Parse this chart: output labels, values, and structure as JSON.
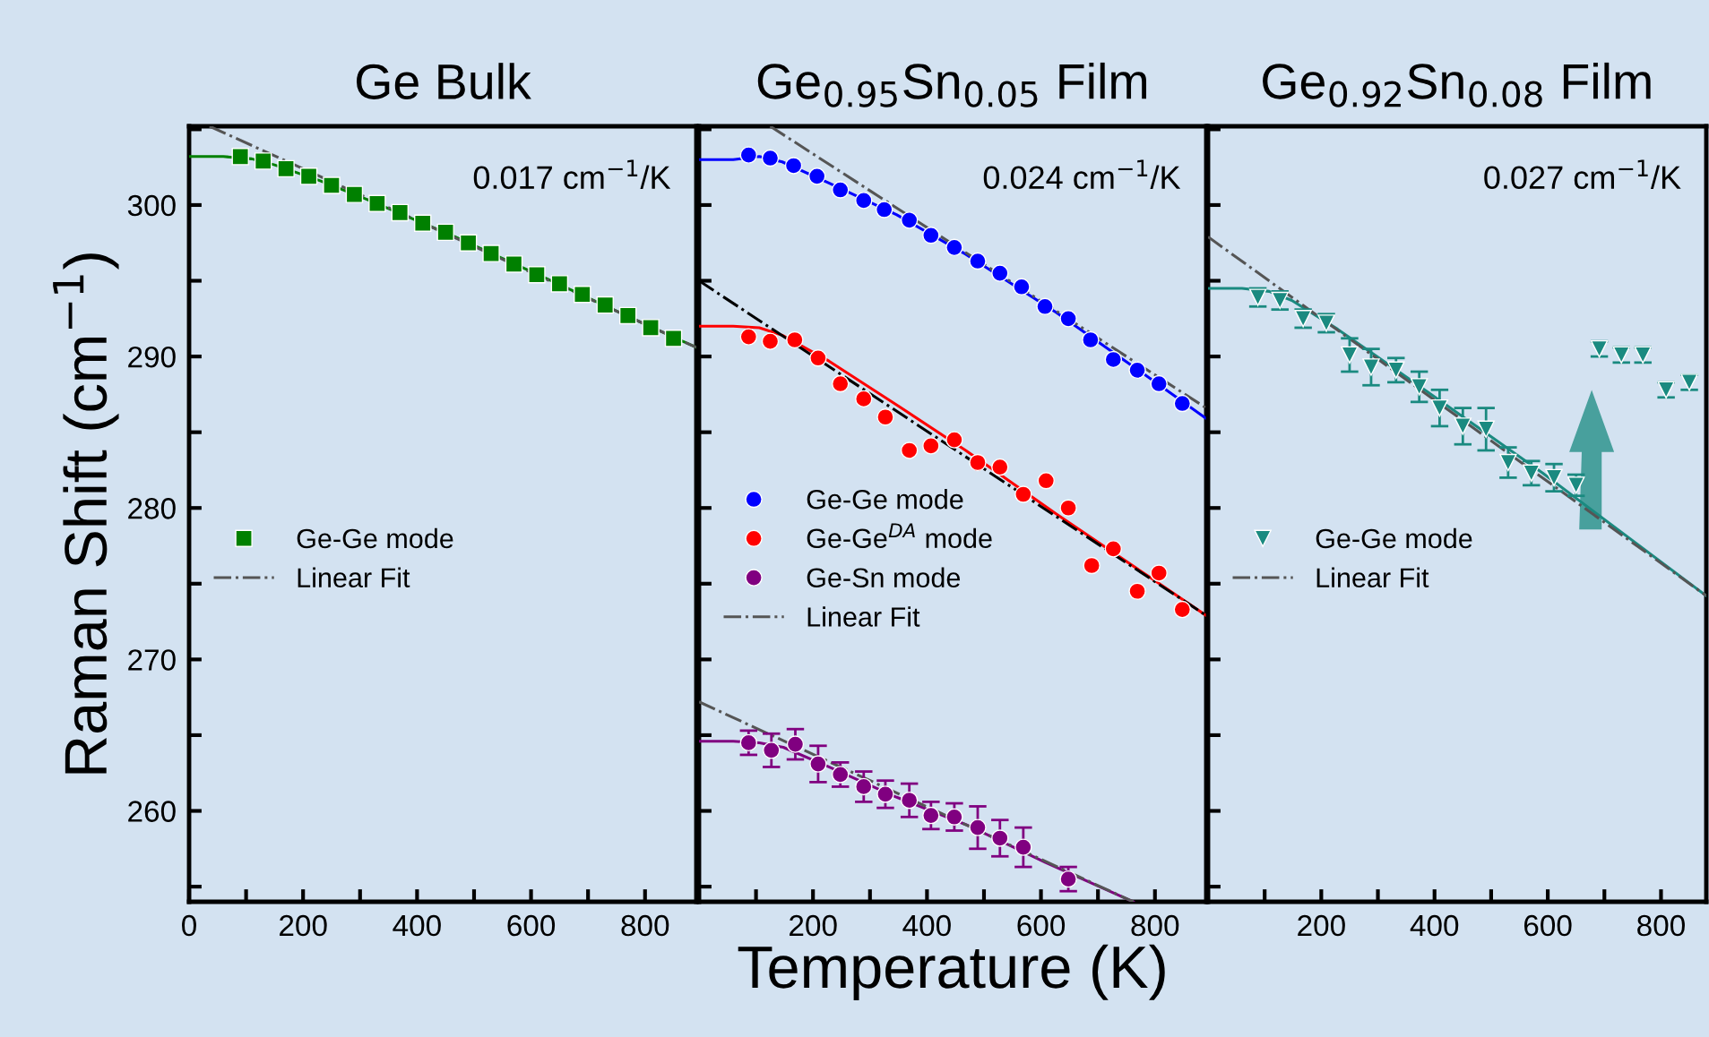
{
  "chart_data": [
    {
      "type": "scatter",
      "title": "Ge Bulk",
      "ylabel": "Raman Shift (cm$^{−1}$)",
      "annotations": [
        "0.017 cm$^{−1}$/K"
      ],
      "xlim": [
        0,
        890
      ],
      "ylim": [
        254,
        305.2
      ],
      "xticks": [
        0,
        {
          "value": 100,
          "label": null
        },
        200,
        {
          "value": 300,
          "label": null
        },
        400,
        {
          "value": 500,
          "label": null
        },
        600,
        {
          "value": 700,
          "label": null
        },
        800
      ],
      "yticks": [
        {
          "value": 255,
          "label": null
        },
        260,
        {
          "value": 265,
          "label": null
        },
        270,
        {
          "value": 275,
          "label": null
        },
        280,
        {
          "value": 285,
          "label": null
        },
        290,
        {
          "value": 295,
          "label": null
        },
        300,
        {
          "value": 305,
          "label": null
        }
      ],
      "grid": false,
      "legend": "left",
      "series": [
        {
          "name": "Ge-Ge mode",
          "marker": "square",
          "color": "#008000",
          "x": [
            90,
            130,
            170,
            210,
            250,
            290,
            330,
            370,
            410,
            450,
            490,
            530,
            570,
            610,
            650,
            690,
            730,
            770,
            810,
            850
          ],
          "values": [
            303.2,
            302.9,
            302.4,
            301.9,
            301.3,
            300.7,
            300.1,
            299.5,
            298.8,
            298.2,
            297.5,
            296.8,
            296.1,
            295.4,
            294.8,
            294.1,
            293.4,
            292.7,
            291.9,
            291.2
          ]
        },
        {
          "type": "line",
          "line_style": "solid",
          "color": "#008000",
          "x": [
            0,
            60,
            110,
            150,
            230,
            310,
            470,
            630,
            790,
            890
          ],
          "values": [
            303.2,
            303.2,
            303.05,
            302.65,
            301.6,
            300.4,
            297.85,
            295.1,
            292.3,
            290.6
          ]
        },
        {
          "name": "Linear Fit",
          "type": "line",
          "line_style": "dashdot",
          "color": "#555555",
          "x": [
            36,
            890
          ],
          "values": [
            305.2,
            290.6
          ]
        }
      ]
    },
    {
      "type": "scatter",
      "title": "Ge$_{0.95}$Sn$_{0.05}$ Film",
      "xlabel": "Temperature (K)",
      "annotations": [
        "0.024 cm$^{−1}$/K"
      ],
      "xlim": [
        0,
        890
      ],
      "ylim": [
        254,
        305.2
      ],
      "tick_labels": "x",
      "xticks": [
        {
          "value": 0,
          "label": null
        },
        {
          "value": 100,
          "label": null
        },
        200,
        {
          "value": 300,
          "label": null
        },
        400,
        {
          "value": 500,
          "label": null
        },
        600,
        {
          "value": 700,
          "label": null
        },
        800
      ],
      "yticks": [
        {
          "value": 255,
          "label": null
        },
        {
          "value": 260,
          "label": null
        },
        {
          "value": 265,
          "label": null
        },
        {
          "value": 270,
          "label": null
        },
        {
          "value": 275,
          "label": null
        },
        {
          "value": 280,
          "label": null
        },
        {
          "value": 285,
          "label": null
        },
        {
          "value": 290,
          "label": null
        },
        {
          "value": 295,
          "label": null
        },
        {
          "value": 300,
          "label": null
        },
        {
          "value": 305,
          "label": null
        }
      ],
      "grid": false,
      "legend": "left",
      "series": [
        {
          "name": "Ge-Ge mode",
          "marker": "circle",
          "color": "#0000ff",
          "x": [
            87,
            125,
            166,
            207,
            248,
            289,
            325,
            369,
            407,
            448,
            489,
            528,
            566,
            607,
            648,
            687,
            727,
            769,
            807,
            848
          ],
          "values": [
            303.3,
            303.1,
            302.6,
            301.9,
            301.0,
            300.3,
            299.7,
            299.0,
            298.0,
            297.2,
            296.3,
            295.5,
            294.6,
            293.3,
            292.5,
            291.1,
            289.8,
            289.1,
            288.2,
            286.9
          ]
        },
        {
          "name": "Ge-Ge$^{DA}$ mode",
          "marker": "circle",
          "color": "#ff0000",
          "x": [
            87,
            125,
            168,
            209,
            248,
            289,
            327,
            369,
            407,
            448,
            489,
            528,
            569,
            609,
            648,
            689,
            727,
            769,
            807,
            848
          ],
          "values": [
            291.3,
            291.0,
            291.1,
            289.9,
            288.2,
            287.2,
            286.0,
            283.8,
            284.1,
            284.5,
            283.0,
            282.7,
            280.9,
            281.8,
            280.0,
            276.2,
            277.3,
            274.5,
            275.7,
            273.3
          ]
        },
        {
          "name": "Ge-Sn mode",
          "marker": "circle",
          "color": "#800080",
          "x": [
            87,
            127,
            169,
            209,
            248,
            289,
            327,
            369,
            407,
            448,
            489,
            528,
            569,
            648
          ],
          "values": [
            264.5,
            264.0,
            264.4,
            263.1,
            262.4,
            261.6,
            261.1,
            260.7,
            259.7,
            259.6,
            258.9,
            258.2,
            257.6,
            255.5
          ],
          "errors": [
            0.8,
            1.1,
            1.0,
            1.2,
            0.8,
            1.0,
            0.9,
            1.1,
            0.9,
            0.9,
            1.4,
            1.2,
            1.3,
            0.8
          ]
        },
        {
          "type": "line",
          "line_style": "solid",
          "color": "#0000ff",
          "x": [
            0,
            60,
            106,
            146,
            228,
            347,
            468,
            627,
            788,
            890
          ],
          "values": [
            303.0,
            303.0,
            303.2,
            302.85,
            301.45,
            299.35,
            296.75,
            292.9,
            288.65,
            285.9
          ]
        },
        {
          "type": "line",
          "line_style": "solid",
          "color": "#ff0000",
          "x": [
            0,
            60,
            106,
            146,
            228,
            347,
            468,
            627,
            788,
            890
          ],
          "values": [
            292.0,
            292.0,
            291.9,
            291.4,
            289.7,
            286.8,
            283.8,
            279.6,
            275.5,
            272.9
          ]
        },
        {
          "type": "line",
          "line_style": "solid",
          "color": "#800080",
          "x": [
            0,
            60,
            106,
            148,
            228,
            347,
            468,
            608,
            762
          ],
          "values": [
            264.6,
            264.6,
            264.5,
            264.2,
            262.9,
            260.9,
            259.1,
            256.6,
            254.0
          ]
        },
        {
          "type": "line",
          "line_style": "dashdot",
          "color": "#555555",
          "x": [
            125,
            890
          ],
          "values": [
            305.2,
            286.6
          ]
        },
        {
          "type": "line",
          "line_style": "dashdot",
          "color": "#000000",
          "x": [
            0,
            890
          ],
          "values": [
            295.0,
            272.9
          ]
        },
        {
          "name": "Linear Fit",
          "type": "line",
          "line_style": "dashdot",
          "color": "#555555",
          "x": [
            0,
            762
          ],
          "values": [
            267.2,
            254.0
          ]
        }
      ]
    },
    {
      "type": "scatter",
      "title": "Ge$_{0.92}$Sn$_{0.08}$ Film",
      "annotations": [
        "0.027 cm$^{−1}$/K"
      ],
      "xlim": [
        0,
        880
      ],
      "ylim": [
        254,
        305.2
      ],
      "tick_labels": "x",
      "xticks": [
        {
          "value": 0,
          "label": null
        },
        {
          "value": 100,
          "label": null
        },
        200,
        {
          "value": 300,
          "label": null
        },
        400,
        {
          "value": 500,
          "label": null
        },
        600,
        {
          "value": 700,
          "label": null
        },
        800
      ],
      "yticks": [
        {
          "value": 255,
          "label": null
        },
        {
          "value": 260,
          "label": null
        },
        {
          "value": 265,
          "label": null
        },
        {
          "value": 270,
          "label": null
        },
        {
          "value": 275,
          "label": null
        },
        {
          "value": 280,
          "label": null
        },
        {
          "value": 285,
          "label": null
        },
        {
          "value": 290,
          "label": null
        },
        {
          "value": 295,
          "label": null
        },
        {
          "value": 300,
          "label": null
        },
        {
          "value": 305,
          "label": null
        }
      ],
      "grid": false,
      "legend": "left",
      "series": [
        {
          "name": "Ge-Ge mode",
          "marker": "triangle_down",
          "color": "#1a8a80",
          "x": [
            88,
            127,
            168,
            209,
            250,
            288,
            332,
            373,
            409,
            450,
            491,
            530,
            571,
            611,
            650,
            691,
            730,
            768,
            809,
            850
          ],
          "values": [
            293.9,
            293.7,
            292.5,
            292.2,
            290.1,
            289.3,
            289.1,
            288.0,
            286.6,
            285.4,
            285.2,
            283.0,
            282.3,
            282.0,
            281.5,
            290.5,
            290.1,
            290.1,
            287.8,
            288.3
          ],
          "errors": [
            0.6,
            0.6,
            0.6,
            0.6,
            1.1,
            1.2,
            0.8,
            1.0,
            1.2,
            1.2,
            1.4,
            1.0,
            0.8,
            0.9,
            0.7,
            0.5,
            0.5,
            0.5,
            0.5,
            0.5
          ]
        },
        {
          "type": "line",
          "line_style": "solid",
          "color": "#1a8a80",
          "x": [
            0,
            60,
            108,
            148,
            229,
            352,
            470,
            591,
            880
          ],
          "values": [
            294.5,
            294.5,
            294.3,
            293.7,
            291.8,
            288.6,
            285.5,
            282.3,
            274.2
          ]
        },
        {
          "name": "Linear Fit",
          "type": "line",
          "line_style": "dashdot",
          "color": "#555555",
          "x": [
            0,
            880
          ],
          "values": [
            297.9,
            274.2
          ]
        }
      ]
    }
  ]
}
